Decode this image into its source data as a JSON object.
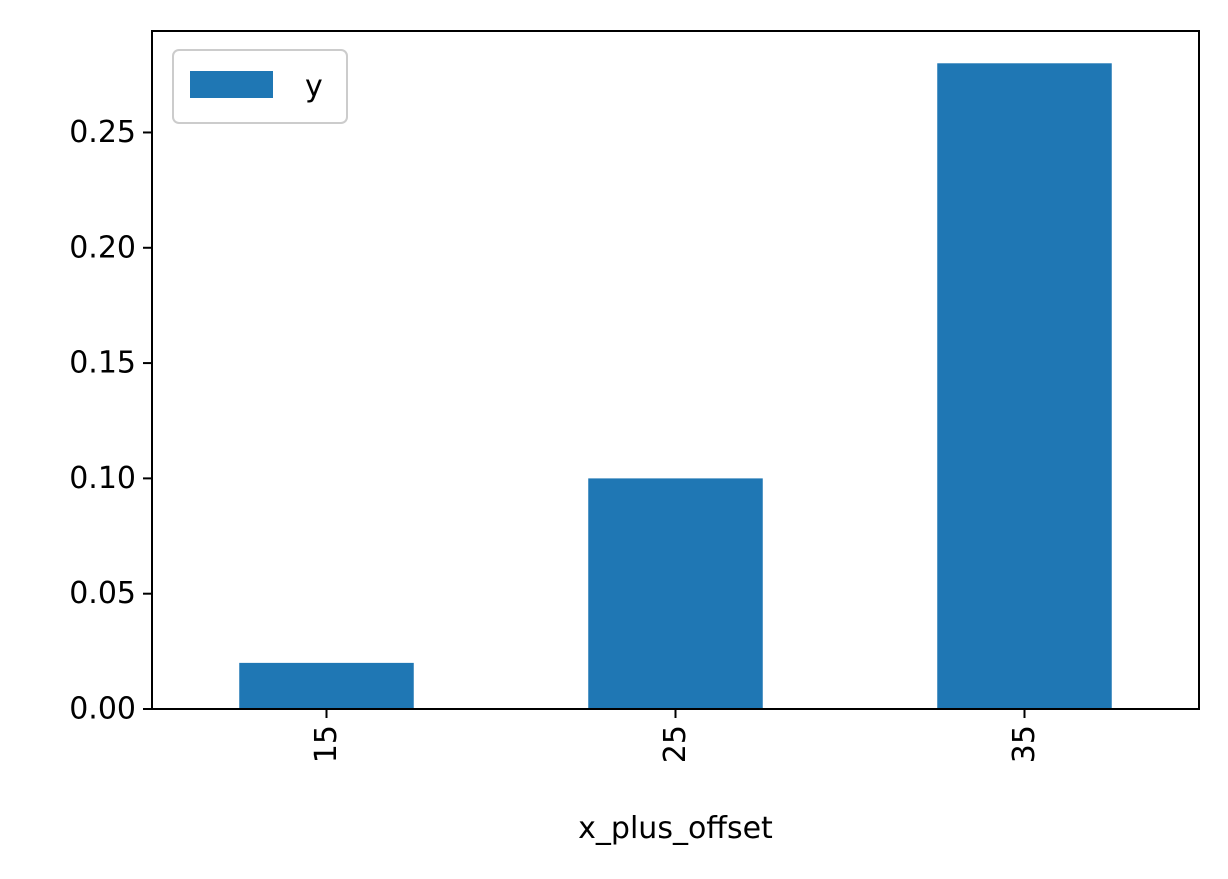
{
  "chart_data": {
    "type": "bar",
    "categories": [
      "15",
      "25",
      "35"
    ],
    "series": [
      {
        "name": "y",
        "values": [
          0.02,
          0.1,
          0.28
        ],
        "color": "#1f77b4"
      }
    ],
    "title": "",
    "xlabel": "x_plus_offset",
    "ylabel": "",
    "ylim": [
      0,
      0.294
    ],
    "yticks": [
      "0.00",
      "0.05",
      "0.10",
      "0.15",
      "0.20",
      "0.25"
    ],
    "ytick_values": [
      0,
      0.05,
      0.1,
      0.15,
      0.2,
      0.25
    ],
    "xtick_rotation": "vertical",
    "grid": false,
    "legend": {
      "position": "top-left",
      "entries": [
        "y"
      ]
    }
  }
}
